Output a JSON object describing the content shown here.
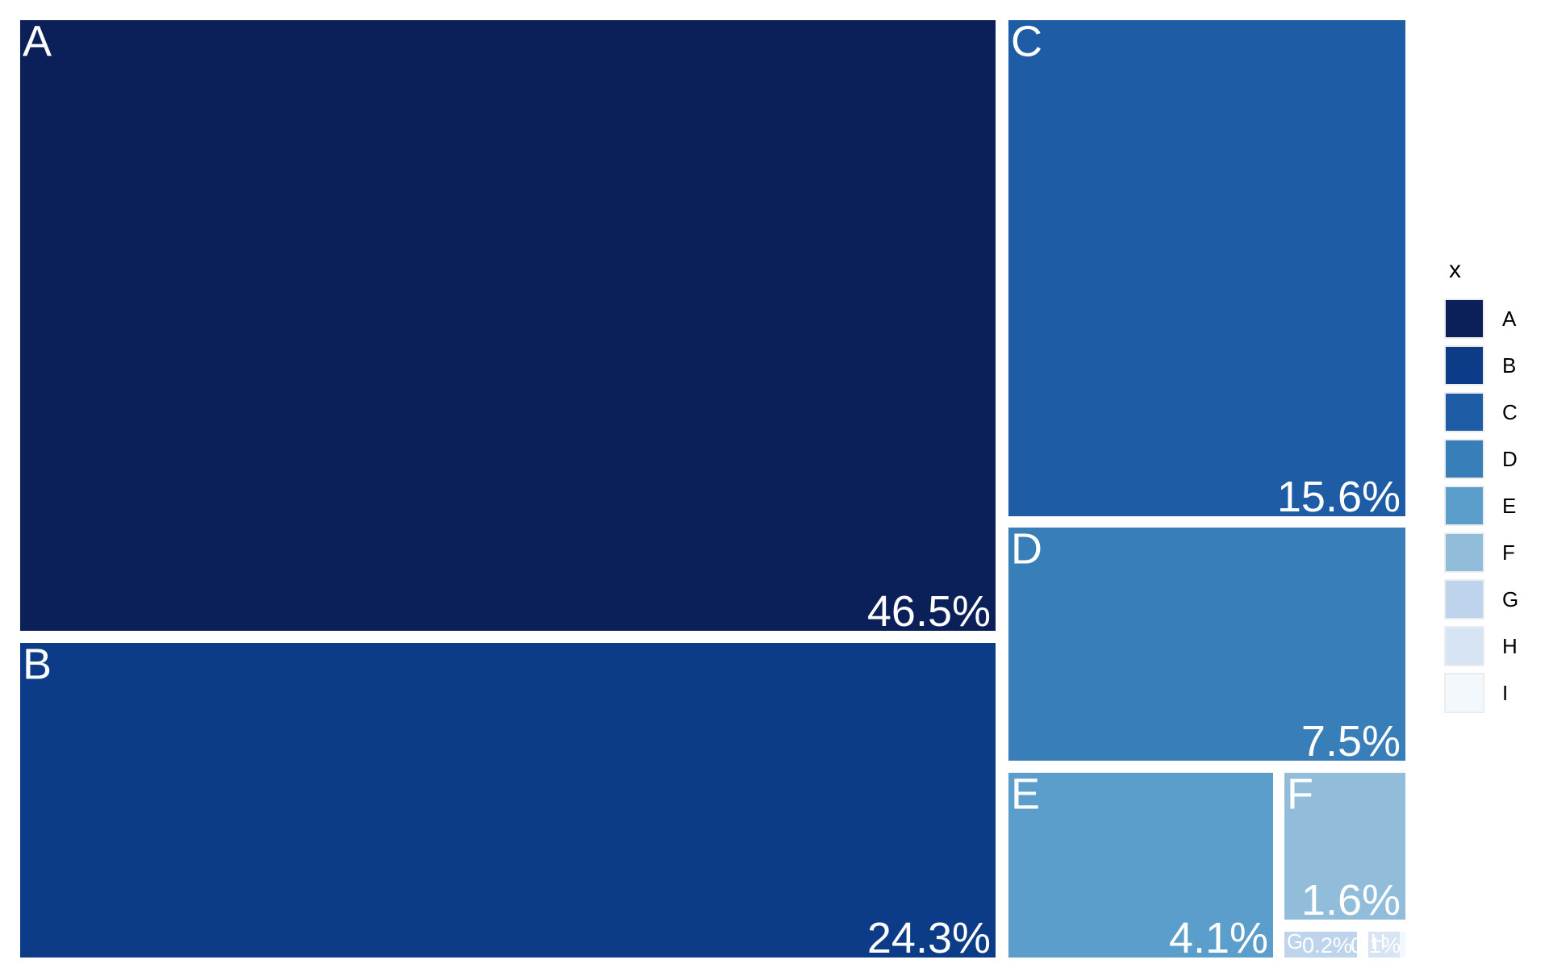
{
  "chart_data": {
    "type": "treemap",
    "legend": {
      "title": "x",
      "position": "right"
    },
    "items": [
      {
        "label": "A",
        "percent": 46.5,
        "percent_label": "46.5%",
        "color": "#0b2059"
      },
      {
        "label": "B",
        "percent": 24.3,
        "percent_label": "24.3%",
        "color": "#0c3b87"
      },
      {
        "label": "C",
        "percent": 15.6,
        "percent_label": "15.6%",
        "color": "#1f5ca6"
      },
      {
        "label": "D",
        "percent": 7.5,
        "percent_label": "7.5%",
        "color": "#387eb8"
      },
      {
        "label": "E",
        "percent": 4.1,
        "percent_label": "4.1%",
        "color": "#5c9ecb"
      },
      {
        "label": "F",
        "percent": 1.6,
        "percent_label": "1.6%",
        "color": "#92bdda"
      },
      {
        "label": "G",
        "percent": 0.2,
        "percent_label": "0.2%",
        "color": "#bed3ec"
      },
      {
        "label": "H",
        "percent": 0.1,
        "percent_label": "0.1%",
        "color": "#d6e4f4"
      },
      {
        "label": "I",
        "percent": 0.0,
        "percent_label": "",
        "color": "#f3f8fd"
      }
    ]
  }
}
